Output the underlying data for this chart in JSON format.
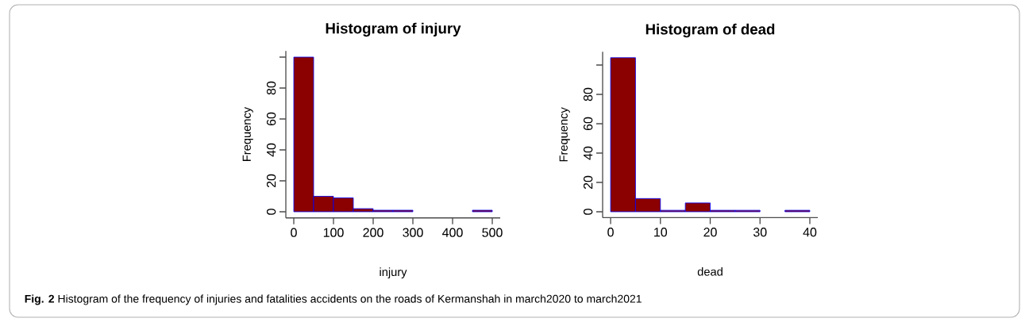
{
  "chart_data": [
    {
      "type": "histogram",
      "title": "Histogram of injury",
      "xlabel": "injury",
      "ylabel": "Frequency",
      "bins": [
        0,
        50,
        100,
        150,
        200,
        250,
        300,
        350,
        400,
        450,
        500
      ],
      "values": [
        100,
        10,
        9,
        2,
        1,
        1,
        0,
        0,
        0,
        1
      ],
      "color": "#8b0000",
      "xlim": [
        -20,
        520
      ],
      "xticks": [
        0,
        100,
        200,
        300,
        400,
        500
      ],
      "ylim": [
        -4,
        104
      ],
      "yticks": [
        0,
        20,
        40,
        60,
        80,
        {
          "value": 100,
          "label": null
        }
      ],
      "annotations": [
        "**Fig. 2** Histogram of the frequency of injuries and fatalities accidents on the roads of Kermanshah in march2020 to march2021"
      ]
    },
    {
      "type": "histogram",
      "title": "Histogram of dead",
      "xlabel": "dead",
      "ylabel": "Frequency",
      "bins": [
        0,
        5,
        10,
        15,
        20,
        25,
        30,
        35,
        40
      ],
      "values": [
        105,
        9,
        1,
        6,
        1,
        1,
        0,
        1
      ],
      "color": "#8b0000",
      "xlim": [
        -1.6,
        41.6
      ],
      "xticks": [
        0,
        10,
        20,
        30,
        40
      ],
      "ylim": [
        -4,
        109
      ],
      "yticks": [
        0,
        20,
        40,
        60,
        80,
        {
          "value": 100,
          "label": null
        }
      ]
    }
  ]
}
